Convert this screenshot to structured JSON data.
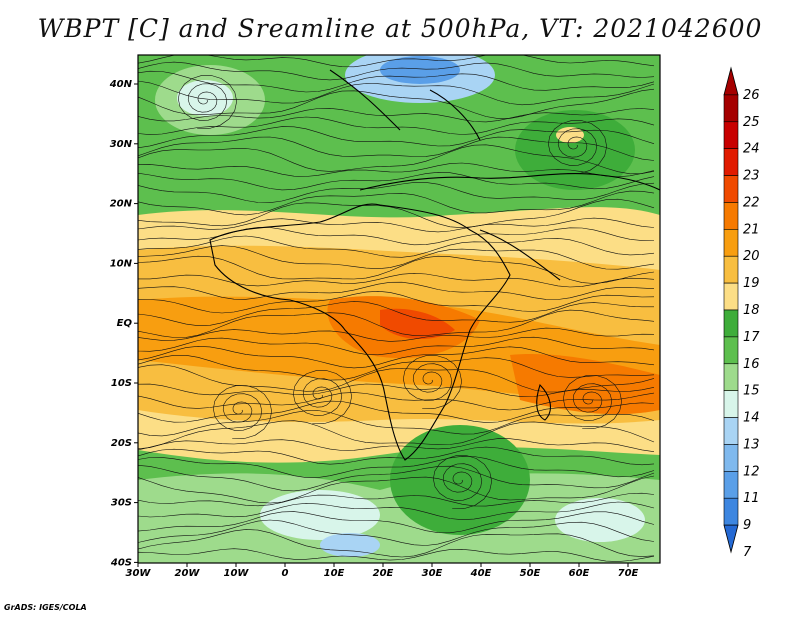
{
  "title": "WBPT [C] and Sreamline at 500hPa, VT: 2021042600",
  "credit": "GrADS: IGES/COLA",
  "map": {
    "lat_labels": [
      "40N",
      "30N",
      "20N",
      "10N",
      "EQ",
      "10S",
      "20S",
      "30S",
      "40S"
    ],
    "lon_labels": [
      "30W",
      "20W",
      "10W",
      "0",
      "10E",
      "20E",
      "30E",
      "40E",
      "50E",
      "60E",
      "70E"
    ]
  },
  "colorbar": {
    "levels": [
      "26",
      "25",
      "24",
      "23",
      "22",
      "21",
      "20",
      "19",
      "18",
      "17",
      "16",
      "15",
      "14",
      "13",
      "12",
      "11",
      "9",
      "7"
    ],
    "colors": [
      "#a50000",
      "#c80000",
      "#e11b00",
      "#f04a00",
      "#f67a00",
      "#f89e10",
      "#f8be40",
      "#fcde86",
      "#3ead3a",
      "#5dbf4e",
      "#9edb8c",
      "#d8f5ea",
      "#a9d4f4",
      "#7fb9ee",
      "#5a9fe8",
      "#3d86e0",
      "#2469d4"
    ]
  },
  "icons": {
    "streamline": "streamline-arrow-icon"
  }
}
